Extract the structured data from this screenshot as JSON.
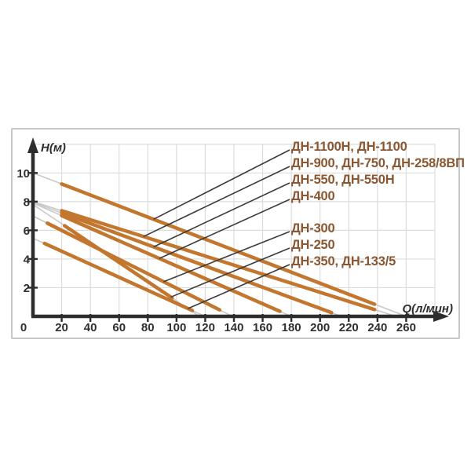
{
  "chart_data": {
    "type": "line",
    "title": "",
    "xlabel": "Q(л/мин)",
    "ylabel": "H(м)",
    "x_units": "л/мин",
    "y_units": "м",
    "xlim": [
      0,
      282
    ],
    "ylim": [
      0,
      13
    ],
    "xticks": [
      20,
      40,
      60,
      80,
      100,
      120,
      140,
      160,
      180,
      200,
      220,
      240,
      260
    ],
    "yticks": [
      2,
      4,
      6,
      8,
      10
    ],
    "origin_label": "0",
    "grid": {
      "show": true,
      "x_step": 20,
      "x_max": 280,
      "y_step": 2,
      "y_max": 12
    },
    "legend_position": "right-inside",
    "colors": {
      "curve": "#c2762e",
      "extension": "#c9c9c9",
      "grid": "#dcdcdc",
      "axis": "#2d2d2d",
      "callout": "#3c3c3c",
      "legend_text": "#8a5733",
      "frame_border": "#c6c6c6"
    },
    "series": [
      {
        "name": "ДН-1100Н, ДН-1100",
        "h_max": 10.0,
        "q_max": 260,
        "solid_q": [
          20,
          238
        ],
        "callout_q": 84
      },
      {
        "name": "ДН-900, ДН-750, ДН-258/8ВП",
        "h_max": 8.0,
        "q_max": 253,
        "solid_q": [
          20,
          238
        ],
        "callout_q": 77
      },
      {
        "name": "ДН-550, ДН-550Н",
        "h_max": 7.95,
        "q_max": 215,
        "solid_q": [
          20,
          208
        ],
        "callout_q": 84
      },
      {
        "name": "ДН-400",
        "h_max": 7.9,
        "q_max": 180,
        "solid_q": [
          20,
          172
        ],
        "callout_q": 88
      },
      {
        "name": "ДН-300",
        "h_max": 7.0,
        "q_max": 139,
        "solid_q": [
          10,
          130
        ],
        "callout_q": 91
      },
      {
        "name": "ДН-250",
        "h_max": 7.8,
        "q_max": 116,
        "solid_q": [
          22,
          97
        ],
        "callout_q": 96
      },
      {
        "name": "ДН-350, ДН-133/5",
        "h_max": 5.45,
        "q_max": 120,
        "solid_q": [
          8,
          111
        ],
        "callout_q": 108
      }
    ]
  }
}
